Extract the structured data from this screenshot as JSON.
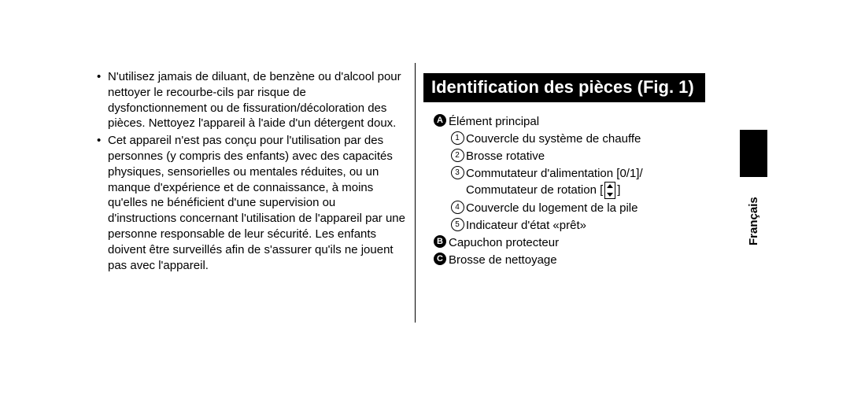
{
  "left": {
    "bullets": [
      "N'utilisez jamais de diluant, de benzène ou d'alcool pour nettoyer le recourbe-cils par risque de dysfonctionnement ou de fissuration/décoloration des pièces. Nettoyez l'appareil à l'aide d'un détergent doux.",
      "Cet appareil n'est pas conçu pour l'utilisation par des personnes (y compris des enfants) avec des capacités physiques, sensorielles ou mentales réduites, ou un manque d'expérience et de connaissance, à moins qu'elles ne bénéficient d'une supervision ou d'instructions concernant l'utilisation de l'appareil par une personne responsable de leur sécurité. Les enfants doivent être surveillés afin de s'assurer qu'ils ne jouent pas avec l'appareil."
    ]
  },
  "right": {
    "heading": "Identification des pièces (Fig. 1)",
    "A": "Élément principal",
    "A1": "Couvercle du système de chauffe",
    "A2": "Brosse rotative",
    "A3_line1": "Commutateur d'alimentation [0/1]/",
    "A3_line2a": "Commutateur de rotation [",
    "A3_line2b": "]",
    "A4": "Couvercle du logement de la pile",
    "A5": "Indicateur d'état «prêt»",
    "B": "Capuchon protecteur",
    "C": "Brosse de nettoyage"
  },
  "lang": "Français",
  "markers": {
    "A": "A",
    "B": "B",
    "C": "C",
    "n1": "1",
    "n2": "2",
    "n3": "3",
    "n4": "4",
    "n5": "5"
  }
}
